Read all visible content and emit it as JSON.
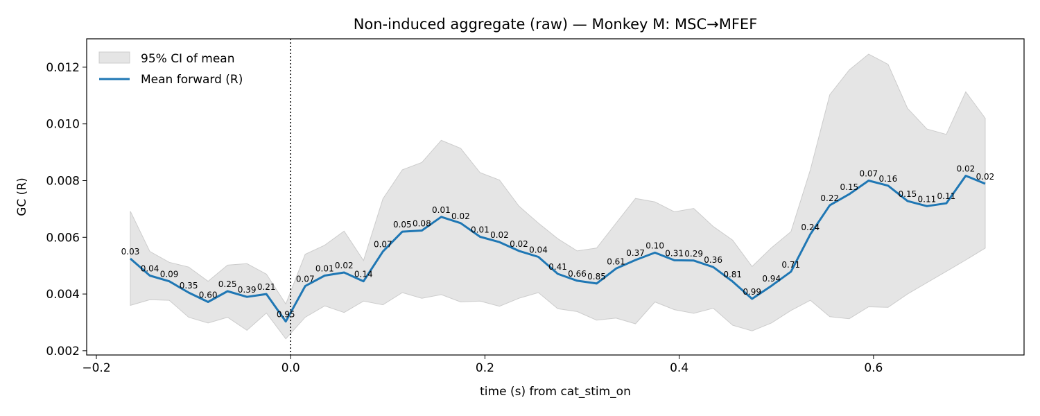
{
  "chart_data": {
    "type": "line",
    "title": "Non-induced aggregate (raw) — Monkey M: MSC→MFEF",
    "xlabel": "time (s) from cat_stim_on",
    "ylabel": "GC (R)",
    "xlim": [
      -0.21,
      0.755
    ],
    "ylim": [
      0.00185,
      0.013
    ],
    "xticks": [
      -0.2,
      0.0,
      0.2,
      0.4,
      0.6
    ],
    "xtick_labels": [
      "−0.2",
      "0.0",
      "0.2",
      "0.4",
      "0.6"
    ],
    "yticks": [
      0.002,
      0.004,
      0.006,
      0.008,
      0.01,
      0.012
    ],
    "ytick_labels": [
      "0.002",
      "0.004",
      "0.006",
      "0.008",
      "0.010",
      "0.012"
    ],
    "vline_x": 0.0,
    "legend_position": "top-left",
    "legend": [
      {
        "label": "95% CI of mean",
        "kind": "band"
      },
      {
        "label": "Mean forward (R)",
        "kind": "line"
      }
    ],
    "colors": {
      "line": "#1f77b4",
      "band": "#e5e5e5",
      "band_edge": "#cccccc"
    },
    "x": [
      -0.165,
      -0.145,
      -0.125,
      -0.105,
      -0.085,
      -0.065,
      -0.045,
      -0.025,
      -0.005,
      0.015,
      0.035,
      0.055,
      0.075,
      0.095,
      0.115,
      0.135,
      0.155,
      0.175,
      0.195,
      0.215,
      0.235,
      0.255,
      0.275,
      0.295,
      0.315,
      0.335,
      0.355,
      0.375,
      0.395,
      0.415,
      0.435,
      0.455,
      0.475,
      0.495,
      0.515,
      0.535,
      0.555,
      0.575,
      0.595,
      0.615,
      0.635,
      0.655,
      0.675,
      0.695,
      0.715
    ],
    "series": [
      {
        "name": "Mean forward (R)",
        "values": [
          0.00525,
          0.00465,
          0.00445,
          0.00405,
          0.00372,
          0.0041,
          0.0039,
          0.004,
          0.00303,
          0.00428,
          0.00465,
          0.00476,
          0.00445,
          0.0055,
          0.0062,
          0.00624,
          0.00672,
          0.0065,
          0.00602,
          0.00583,
          0.00552,
          0.00531,
          0.00471,
          0.00447,
          0.00437,
          0.0049,
          0.0052,
          0.00546,
          0.00519,
          0.00518,
          0.00495,
          0.00444,
          0.00383,
          0.00429,
          0.00479,
          0.00611,
          0.00713,
          0.00752,
          0.008,
          0.00782,
          0.00728,
          0.0071,
          0.0072,
          0.00817,
          0.00789
        ]
      }
    ],
    "ci_lower": [
      0.0036,
      0.0038,
      0.00378,
      0.00318,
      0.00298,
      0.00318,
      0.00272,
      0.00333,
      0.00242,
      0.00318,
      0.00358,
      0.00335,
      0.00375,
      0.00362,
      0.00405,
      0.00385,
      0.00398,
      0.00372,
      0.00375,
      0.00357,
      0.00385,
      0.00405,
      0.00348,
      0.00338,
      0.00308,
      0.00315,
      0.00295,
      0.00372,
      0.00345,
      0.00332,
      0.0035,
      0.0029,
      0.0027,
      0.00298,
      0.00342,
      0.00378,
      0.0032,
      0.00313,
      0.00355,
      0.00353,
      0.004,
      0.0044,
      0.0048,
      0.0052,
      0.00562
    ],
    "ci_upper": [
      0.00692,
      0.0055,
      0.00512,
      0.00495,
      0.00445,
      0.00502,
      0.00507,
      0.0047,
      0.00365,
      0.0054,
      0.00572,
      0.00622,
      0.00518,
      0.00736,
      0.00838,
      0.00864,
      0.00942,
      0.00914,
      0.00828,
      0.00802,
      0.0071,
      0.0065,
      0.00595,
      0.00552,
      0.00562,
      0.0065,
      0.00737,
      0.00725,
      0.0069,
      0.00702,
      0.00638,
      0.0059,
      0.00497,
      0.00563,
      0.0062,
      0.00838,
      0.01103,
      0.0119,
      0.01246,
      0.0121,
      0.01055,
      0.00982,
      0.00963,
      0.01113,
      0.0102
    ],
    "point_labels": [
      "0.03",
      "0.04",
      "0.09",
      "0.35",
      "0.60",
      "0.25",
      "0.39",
      "0.21",
      "0.95",
      "0.07",
      "0.01",
      "0.02",
      "0.14",
      "0.07",
      "0.05",
      "0.08",
      "0.01",
      "0.02",
      "0.01",
      "0.02",
      "0.02",
      "0.04",
      "0.41",
      "0.66",
      "0.85",
      "0.61",
      "0.37",
      "0.10",
      "0.31",
      "0.29",
      "0.36",
      "0.81",
      "0.99",
      "0.94",
      "0.71",
      "0.24",
      "0.22",
      "0.15",
      "0.07",
      "0.16",
      "0.15",
      "0.11",
      "0.11",
      "0.02",
      "0.02"
    ]
  }
}
